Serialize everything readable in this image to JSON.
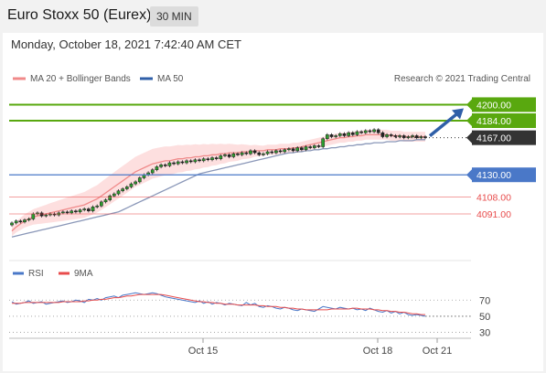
{
  "header": {
    "title": "Euro Stoxx 50 (Eurex)",
    "interval": "30 MIN",
    "datetime": "Monday, October 18, 2021 7:42:40 AM CET"
  },
  "legend": {
    "ma20": "MA 20 + Bollinger Bands",
    "ma50": "MA 50",
    "credit": "Research © 2021 Trading Central",
    "rsi": "RSI",
    "rsi_ma": "9MA"
  },
  "colors": {
    "green": "#59a80f",
    "blue": "#4a78c8",
    "red": "#e84c4c",
    "band": "#fcd4d4",
    "ma20": "#f08a8a",
    "ma50": "#8a97b8",
    "current": "#333333",
    "arrow": "#2f5fa8"
  },
  "chart_data": [
    {
      "type": "candlestick",
      "ylim": [
        4060,
        4215
      ],
      "x_ticks": [
        "Oct 15",
        "Oct 18",
        "Oct 21"
      ],
      "levels": [
        {
          "label": "4200.00",
          "value": 4200,
          "kind": "target"
        },
        {
          "label": "4184.00",
          "value": 4184,
          "kind": "target"
        },
        {
          "label": "4167.00",
          "value": 4167,
          "kind": "current"
        },
        {
          "label": "4130.00",
          "value": 4130,
          "kind": "pivot"
        },
        {
          "label": "4108.00",
          "value": 4108,
          "kind": "support"
        },
        {
          "label": "4091.00",
          "value": 4091,
          "kind": "support"
        }
      ],
      "close": [
        4082,
        4084,
        4083,
        4085,
        4086,
        4091,
        4092,
        4089,
        4090,
        4091,
        4090,
        4092,
        4093,
        4092,
        4094,
        4093,
        4095,
        4096,
        4094,
        4098,
        4099,
        4103,
        4105,
        4109,
        4111,
        4114,
        4116,
        4118,
        4121,
        4123,
        4127,
        4130,
        4132,
        4135,
        4138,
        4140,
        4139,
        4142,
        4141,
        4143,
        4142,
        4144,
        4143,
        4145,
        4144,
        4146,
        4145,
        4147,
        4146,
        4149,
        4150,
        4148,
        4151,
        4150,
        4152,
        4151,
        4154,
        4152,
        4150,
        4151,
        4153,
        4152,
        4154,
        4153,
        4155,
        4156,
        4154,
        4157,
        4155,
        4158,
        4157,
        4159,
        4158,
        4166,
        4170,
        4168,
        4169,
        4171,
        4169,
        4172,
        4170,
        4173,
        4172,
        4174,
        4173,
        4175,
        4172,
        4168,
        4170,
        4169,
        4168,
        4169,
        4167,
        4168,
        4169,
        4167,
        4168,
        4167
      ],
      "ma20": [
        4074,
        4078,
        4081,
        4084,
        4086,
        4088,
        4089,
        4090,
        4091,
        4092,
        4093,
        4094,
        4095,
        4096,
        4097,
        4098,
        4099,
        4100,
        4102,
        4104,
        4106,
        4109,
        4112,
        4115,
        4118,
        4121,
        4124,
        4127,
        4130,
        4133,
        4135,
        4137,
        4139,
        4141,
        4142,
        4143,
        4144,
        4144,
        4145,
        4146,
        4146,
        4147,
        4147,
        4148,
        4148,
        4149,
        4149,
        4150,
        4150,
        4151,
        4151,
        4152,
        4152,
        4152,
        4153,
        4153,
        4153,
        4154,
        4154,
        4154,
        4155,
        4155,
        4155,
        4156,
        4156,
        4156,
        4157,
        4157,
        4158,
        4159,
        4160,
        4161,
        4162,
        4163,
        4164,
        4165,
        4166,
        4167,
        4167,
        4168,
        4168,
        4169,
        4169,
        4170,
        4170,
        4170,
        4170,
        4170,
        4170,
        4169,
        4169,
        4169,
        4168,
        4168,
        4168,
        4168,
        4168,
        4168
      ],
      "ma50": [
        4068,
        4069,
        4070,
        4071,
        4072,
        4073,
        4074,
        4075,
        4076,
        4077,
        4078,
        4079,
        4080,
        4081,
        4082,
        4083,
        4084,
        4085,
        4086,
        4087,
        4088,
        4089,
        4090,
        4091,
        4092,
        4093,
        4095,
        4097,
        4099,
        4101,
        4103,
        4105,
        4107,
        4109,
        4111,
        4113,
        4115,
        4117,
        4119,
        4121,
        4123,
        4125,
        4127,
        4129,
        4131,
        4132,
        4133,
        4134,
        4135,
        4136,
        4137,
        4138,
        4139,
        4140,
        4141,
        4142,
        4143,
        4144,
        4145,
        4146,
        4147,
        4148,
        4149,
        4150,
        4151,
        4152,
        4152,
        4153,
        4153,
        4154,
        4154,
        4155,
        4155,
        4156,
        4156,
        4157,
        4157,
        4158,
        4158,
        4159,
        4159,
        4160,
        4160,
        4161,
        4161,
        4162,
        4162,
        4162,
        4163,
        4163,
        4163,
        4164,
        4164,
        4164,
        4164,
        4165,
        4165,
        4165
      ],
      "target_arrow": {
        "from": 4167,
        "to": 4200
      }
    },
    {
      "type": "line",
      "ylim": [
        25,
        85
      ],
      "y_ticks": [
        70,
        50,
        30
      ],
      "rsi": [
        68,
        65,
        66,
        67,
        69,
        66,
        67,
        68,
        65,
        66,
        67,
        68,
        69,
        67,
        68,
        70,
        69,
        67,
        71,
        70,
        72,
        70,
        73,
        74,
        75,
        73,
        76,
        77,
        78,
        79,
        78,
        77,
        78,
        79,
        78,
        76,
        74,
        73,
        72,
        71,
        70,
        69,
        68,
        67,
        69,
        66,
        68,
        65,
        67,
        66,
        64,
        66,
        65,
        64,
        63,
        67,
        64,
        66,
        62,
        61,
        63,
        62,
        60,
        59,
        61,
        60,
        58,
        57,
        59,
        58,
        57,
        56,
        59,
        62,
        61,
        60,
        59,
        61,
        60,
        59,
        60,
        58,
        59,
        57,
        60,
        58,
        56,
        55,
        57,
        54,
        56,
        53,
        55,
        52,
        51,
        52,
        51,
        50
      ],
      "rsi_ma": [
        66,
        66,
        66,
        67,
        67,
        67,
        67,
        67,
        67,
        67,
        67,
        67,
        68,
        68,
        68,
        68,
        68,
        69,
        69,
        70,
        70,
        71,
        71,
        72,
        73,
        73,
        74,
        75,
        75,
        76,
        77,
        77,
        77,
        77,
        77,
        77,
        76,
        75,
        74,
        73,
        72,
        71,
        70,
        69,
        68,
        68,
        67,
        67,
        66,
        66,
        65,
        65,
        65,
        64,
        64,
        64,
        64,
        64,
        63,
        63,
        62,
        62,
        62,
        61,
        61,
        60,
        60,
        59,
        59,
        58,
        58,
        58,
        58,
        58,
        58,
        59,
        59,
        59,
        59,
        59,
        60,
        60,
        59,
        59,
        59,
        58,
        58,
        57,
        57,
        56,
        56,
        55,
        55,
        54,
        53,
        53,
        52,
        52
      ]
    }
  ]
}
